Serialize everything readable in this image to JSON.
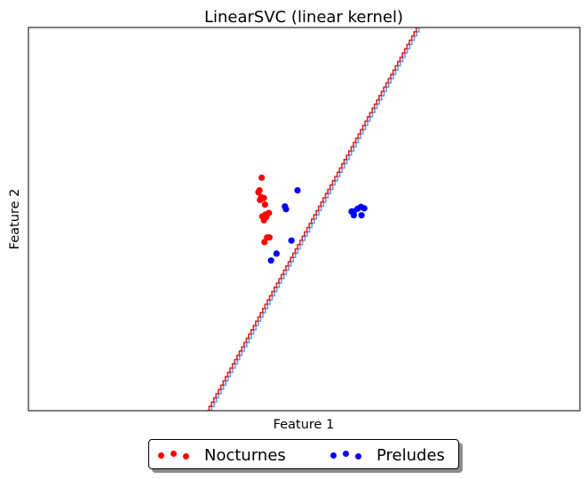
{
  "chart_data": {
    "type": "scatter",
    "title": "LinearSVC (linear kernel)",
    "xlabel": "Feature 1",
    "ylabel": "Feature 2",
    "xlim": [
      0,
      1
    ],
    "ylim": [
      0,
      1
    ],
    "xticks": [],
    "yticks": [],
    "grid": false,
    "legend_position": "bottom-center",
    "decision_boundary": {
      "type": "line",
      "points": [
        [
          0.325,
          0.0
        ],
        [
          0.705,
          1.0
        ]
      ],
      "colors": [
        "#d62728",
        "#6f9ae0"
      ]
    },
    "series": [
      {
        "name": "Nocturnes",
        "color": "#ff0000",
        "points": [
          [
            0.423,
            0.608
          ],
          [
            0.419,
            0.575
          ],
          [
            0.417,
            0.57
          ],
          [
            0.422,
            0.557
          ],
          [
            0.427,
            0.555
          ],
          [
            0.42,
            0.55
          ],
          [
            0.429,
            0.538
          ],
          [
            0.436,
            0.516
          ],
          [
            0.43,
            0.512
          ],
          [
            0.424,
            0.507
          ],
          [
            0.427,
            0.497
          ],
          [
            0.431,
            0.505
          ],
          [
            0.433,
            0.452
          ],
          [
            0.437,
            0.452
          ],
          [
            0.428,
            0.44
          ]
        ]
      },
      {
        "name": "Preludes",
        "color": "#0000ff",
        "points": [
          [
            0.488,
            0.575
          ],
          [
            0.465,
            0.533
          ],
          [
            0.467,
            0.526
          ],
          [
            0.477,
            0.444
          ],
          [
            0.45,
            0.41
          ],
          [
            0.44,
            0.392
          ],
          [
            0.586,
            0.52
          ],
          [
            0.59,
            0.51
          ],
          [
            0.597,
            0.527
          ],
          [
            0.603,
            0.532
          ],
          [
            0.609,
            0.528
          ],
          [
            0.604,
            0.51
          ],
          [
            0.59,
            0.52
          ]
        ]
      }
    ]
  },
  "legend": {
    "entries": [
      {
        "label": "Nocturnes",
        "color": "#ff0000"
      },
      {
        "label": "Preludes",
        "color": "#0000ff"
      }
    ]
  }
}
